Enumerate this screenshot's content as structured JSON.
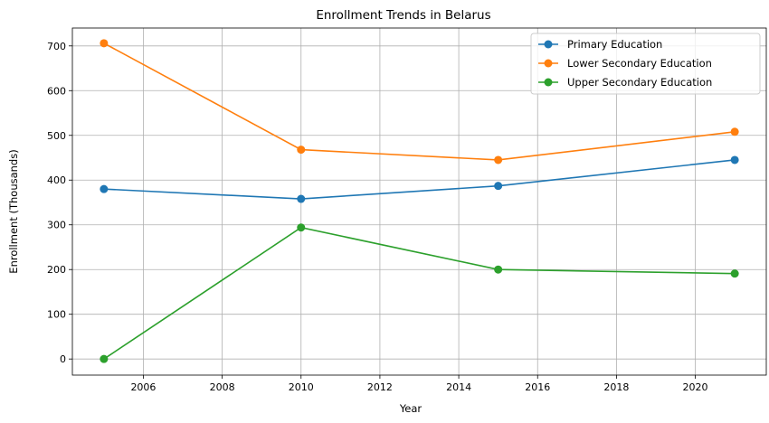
{
  "chart_data": {
    "type": "line",
    "title": "Enrollment Trends in Belarus",
    "xlabel": "Year",
    "ylabel": "Enrollment (Thousands)",
    "xlim": [
      2004.2,
      2021.8
    ],
    "ylim": [
      -36,
      740
    ],
    "xticks": [
      2006,
      2008,
      2010,
      2012,
      2014,
      2016,
      2018,
      2020
    ],
    "yticks": [
      0,
      100,
      200,
      300,
      400,
      500,
      600,
      700
    ],
    "grid": true,
    "legend_position": "top-right",
    "x": [
      2005,
      2010,
      2015,
      2021
    ],
    "series": [
      {
        "name": "Primary Education",
        "color": "#1f77b4",
        "values": [
          380,
          358,
          387,
          445
        ]
      },
      {
        "name": "Lower Secondary Education",
        "color": "#ff7f0e",
        "values": [
          706,
          468,
          445,
          508
        ]
      },
      {
        "name": "Upper Secondary Education",
        "color": "#2ca02c",
        "values": [
          0,
          294,
          200,
          191
        ]
      }
    ]
  }
}
